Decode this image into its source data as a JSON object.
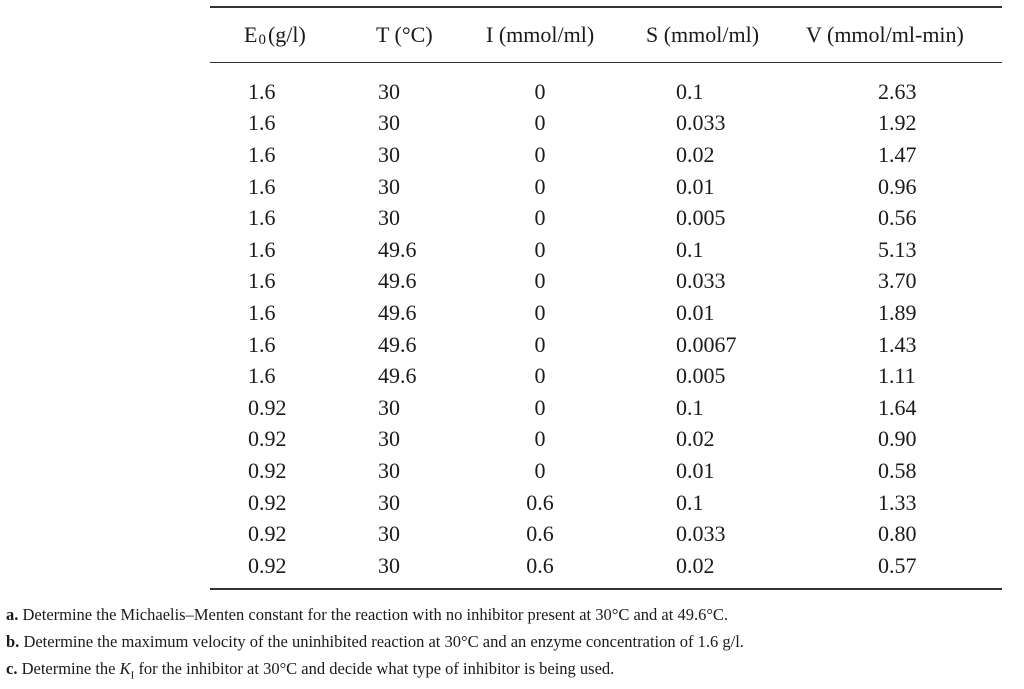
{
  "table": {
    "headers": [
      {
        "main": "E",
        "sub": "0",
        "rest": " (g/l)"
      },
      {
        "main": "T (°C)"
      },
      {
        "main": "I (mmol/ml)"
      },
      {
        "main": "S (mmol/ml)"
      },
      {
        "main": "V (mmol/ml-min)"
      }
    ],
    "rows": [
      [
        "1.6",
        "30",
        "0",
        "0.1",
        "2.63"
      ],
      [
        "1.6",
        "30",
        "0",
        "0.033",
        "1.92"
      ],
      [
        "1.6",
        "30",
        "0",
        "0.02",
        "1.47"
      ],
      [
        "1.6",
        "30",
        "0",
        "0.01",
        "0.96"
      ],
      [
        "1.6",
        "30",
        "0",
        "0.005",
        "0.56"
      ],
      [
        "1.6",
        "49.6",
        "0",
        "0.1",
        "5.13"
      ],
      [
        "1.6",
        "49.6",
        "0",
        "0.033",
        "3.70"
      ],
      [
        "1.6",
        "49.6",
        "0",
        "0.01",
        "1.89"
      ],
      [
        "1.6",
        "49.6",
        "0",
        "0.0067",
        "1.43"
      ],
      [
        "1.6",
        "49.6",
        "0",
        "0.005",
        "1.11"
      ],
      [
        "0.92",
        "30",
        "0",
        "0.1",
        "1.64"
      ],
      [
        "0.92",
        "30",
        "0",
        "0.02",
        "0.90"
      ],
      [
        "0.92",
        "30",
        "0",
        "0.01",
        "0.58"
      ],
      [
        "0.92",
        "30",
        "0.6",
        "0.1",
        "1.33"
      ],
      [
        "0.92",
        "30",
        "0.6",
        "0.033",
        "0.80"
      ],
      [
        "0.92",
        "30",
        "0.6",
        "0.02",
        "0.57"
      ]
    ]
  },
  "questions": {
    "a": {
      "label": "a.",
      "text": " Determine the Michaelis–Menten constant for the reaction with no inhibitor present at 30°C and at 49.6°C."
    },
    "b": {
      "label": "b.",
      "text": " Determine the maximum velocity of the uninhibited reaction at 30°C and an enzyme concentration of 1.6 g/l."
    },
    "c": {
      "label": "c.",
      "text_before": " Determine the ",
      "k_main": "K",
      "k_sub": "I",
      "text_after": " for the inhibitor at 30°C and decide what type of inhibitor is being used."
    }
  }
}
